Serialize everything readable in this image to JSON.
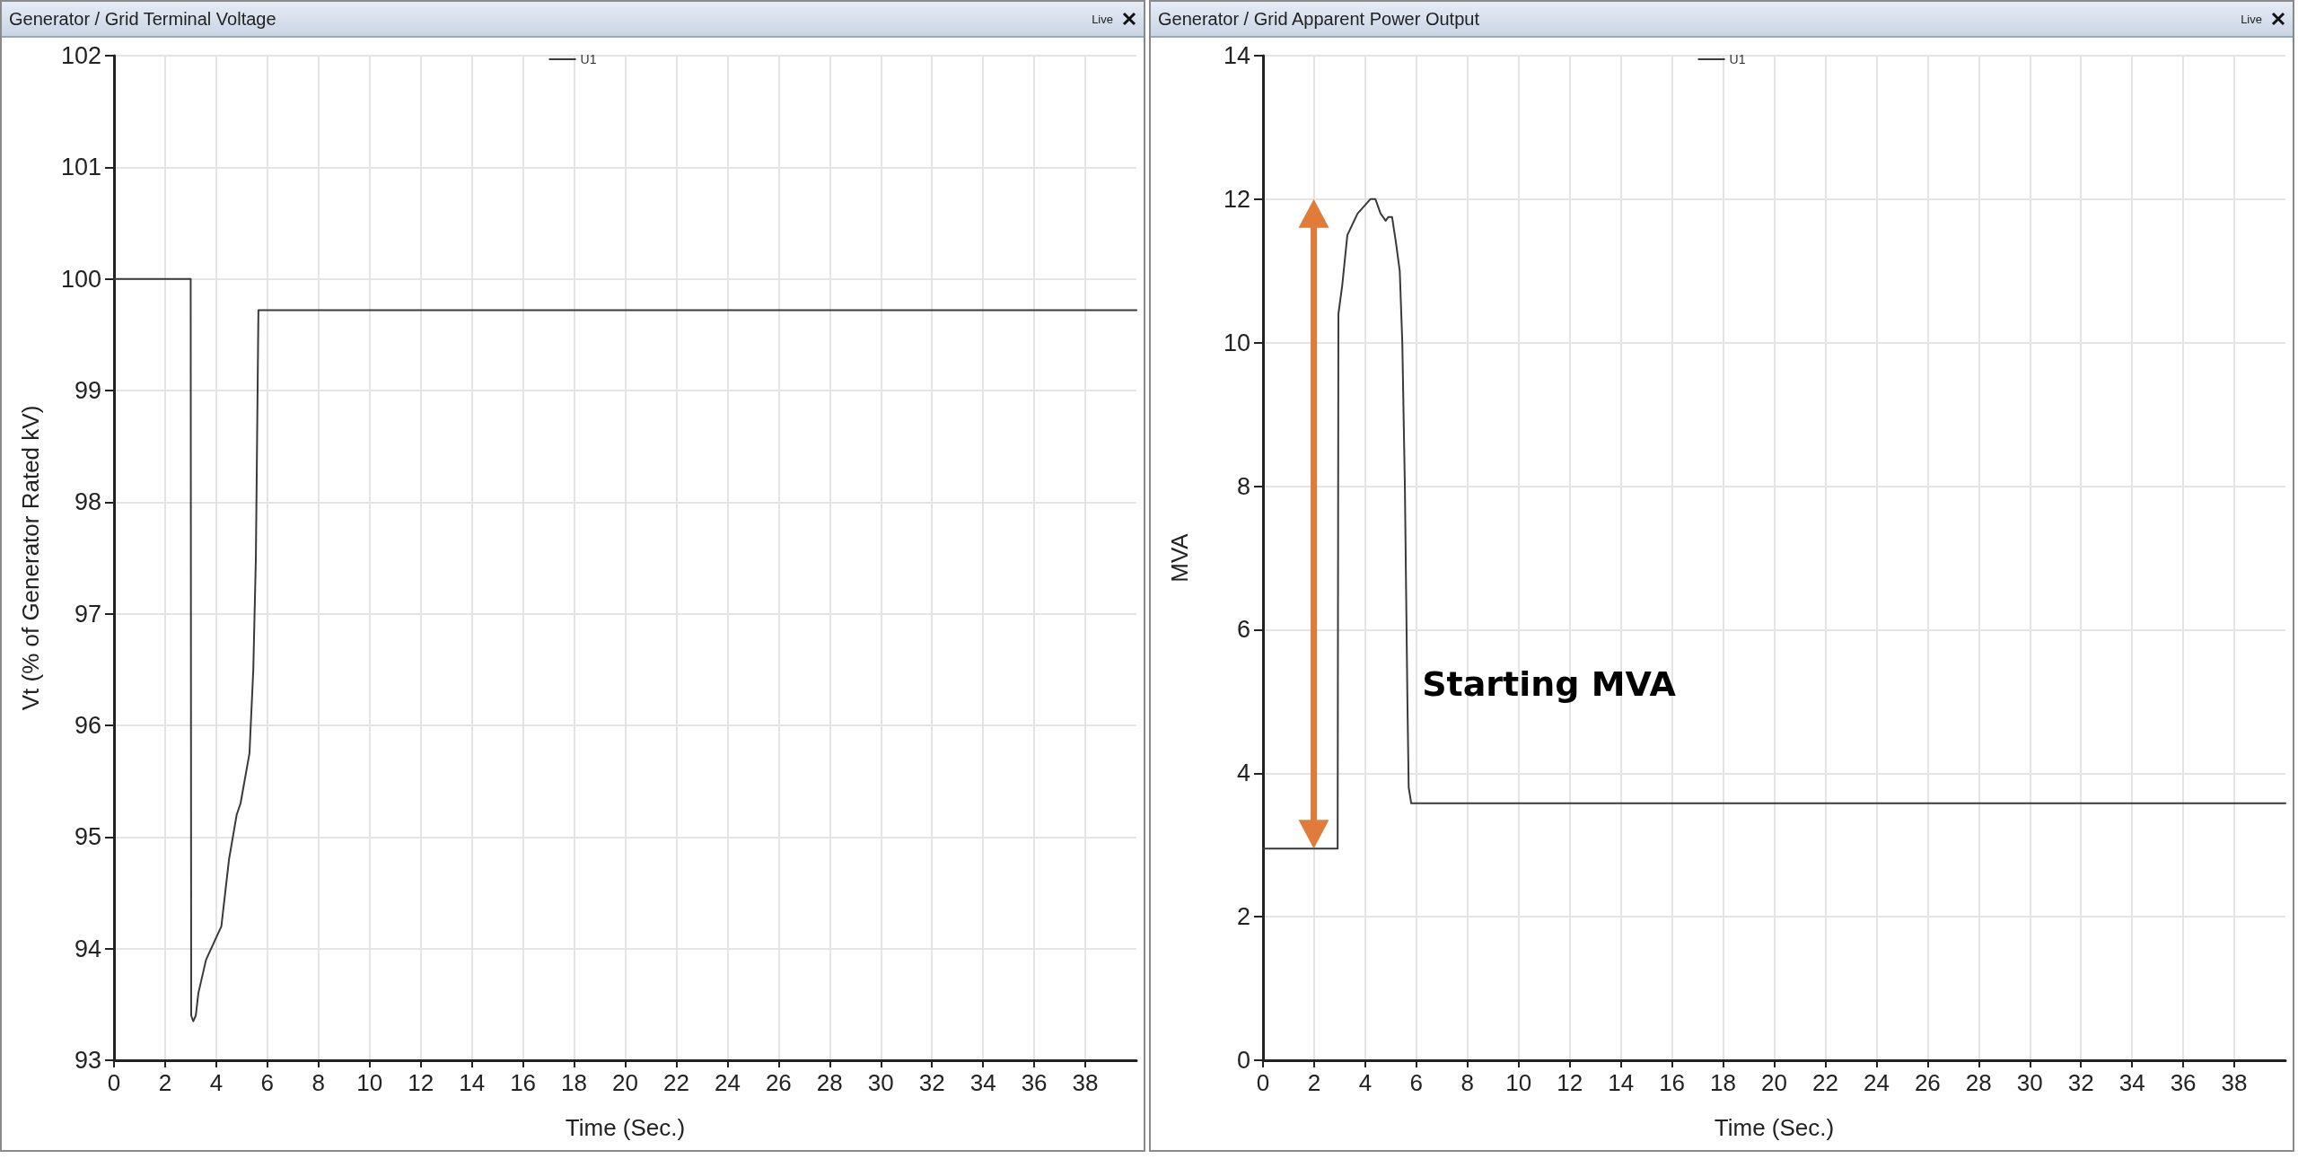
{
  "chart_data": [
    {
      "type": "line",
      "title": "Generator / Grid Terminal Voltage",
      "xlabel": "Time (Sec.)",
      "ylabel": "Vt (% of Generator Rated kV)",
      "x": [
        0,
        3,
        3.02,
        3.1,
        3.2,
        3.3,
        3.6,
        4.2,
        4.5,
        4.8,
        4.95,
        5.3,
        5.45,
        5.55,
        5.6,
        5.65,
        40
      ],
      "series": [
        {
          "name": "U1",
          "color": "#3a3a3a",
          "values": [
            100,
            100,
            93.4,
            93.35,
            93.4,
            93.6,
            93.9,
            94.2,
            94.8,
            95.2,
            95.3,
            95.75,
            96.5,
            97.5,
            98.6,
            99.72,
            99.72
          ]
        }
      ],
      "xlim": [
        0,
        40
      ],
      "xticks": [
        0,
        2,
        4,
        6,
        8,
        10,
        12,
        14,
        16,
        18,
        20,
        22,
        24,
        26,
        28,
        30,
        32,
        34,
        36,
        38
      ],
      "ylim": [
        93,
        102
      ],
      "yticks": [
        93,
        94,
        95,
        96,
        97,
        98,
        99,
        100,
        101,
        102
      ],
      "grid": true,
      "legend": "top",
      "marker": "none",
      "line_style": "solid",
      "annotations": [
        "Live"
      ]
    },
    {
      "type": "line",
      "title": "Generator / Grid Apparent Power Output",
      "xlabel": "Time (Sec.)",
      "ylabel": "MVA",
      "x": [
        0,
        2.92,
        2.95,
        3.1,
        3.3,
        3.7,
        4.2,
        4.4,
        4.6,
        4.8,
        4.9,
        5.05,
        5.2,
        5.35,
        5.45,
        5.55,
        5.6,
        5.65,
        5.7,
        5.8,
        40
      ],
      "series": [
        {
          "name": "U1",
          "color": "#3a3a3a",
          "values": [
            2.95,
            2.95,
            10.4,
            10.8,
            11.5,
            11.8,
            12,
            12,
            11.8,
            11.7,
            11.75,
            11.75,
            11.4,
            11,
            10,
            8,
            6.5,
            5,
            3.8,
            3.58,
            3.58
          ]
        }
      ],
      "xlim": [
        0,
        40
      ],
      "xticks": [
        0,
        2,
        4,
        6,
        8,
        10,
        12,
        14,
        16,
        18,
        20,
        22,
        24,
        26,
        28,
        30,
        32,
        34,
        36,
        38
      ],
      "ylim": [
        0,
        14
      ],
      "yticks": [
        0,
        2,
        4,
        6,
        8,
        10,
        12,
        14
      ],
      "grid": true,
      "legend": "top",
      "marker": "none",
      "line_style": "solid",
      "annotations": [
        "Live",
        "Starting MVA"
      ]
    }
  ]
}
